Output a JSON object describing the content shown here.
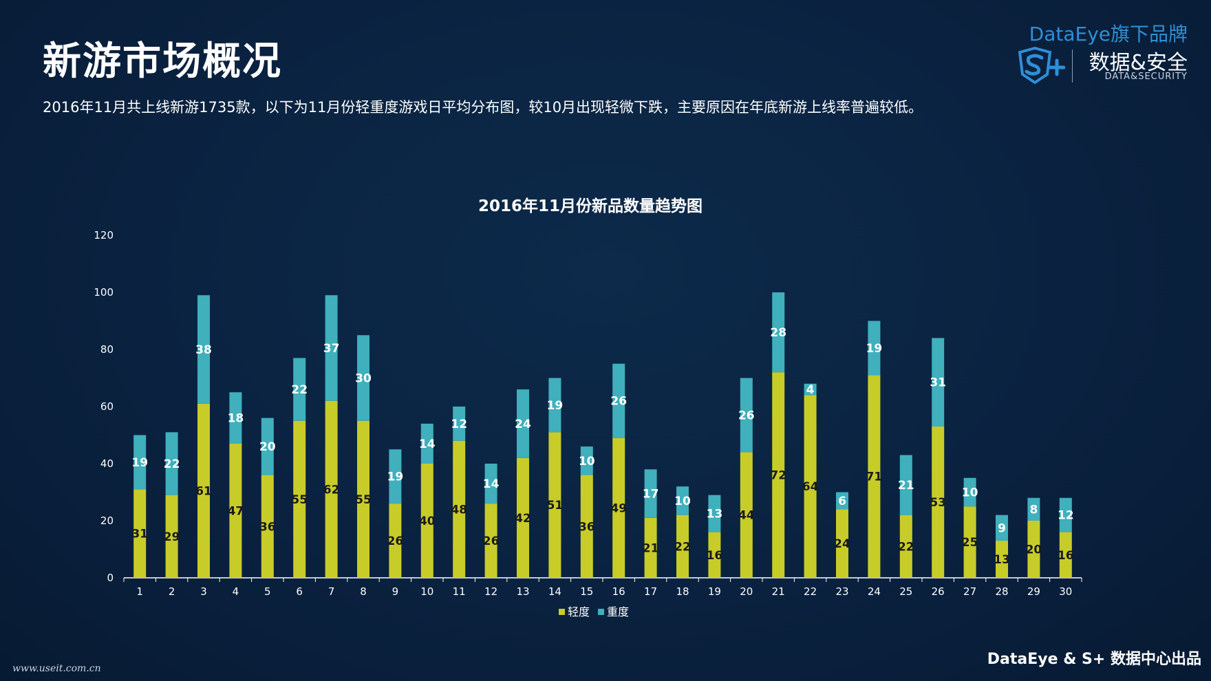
{
  "header": {
    "title": "新游市场概况",
    "subtitle": "2016年11月共上线新游1735款，以下为11月份轻重度游戏日平均分布图，较10月出现轻微下跌，主要原因在年底新游上线率普遍较低。"
  },
  "brand": {
    "tagline": "DataEye旗下品牌",
    "name_cn": "数据&安全",
    "name_en": "DATA&SECURITY",
    "logo_icon": "shield-s-plus-icon"
  },
  "footer": {
    "left": "www.useit.com.cn",
    "right": "DataEye & S+ 数据中心出品"
  },
  "colors": {
    "light": "#c8cc28",
    "heavy": "#3fb0bc",
    "axis": "#ffffff",
    "brand_blue": "#2f8fd6"
  },
  "chart_data": {
    "type": "bar",
    "stacked": true,
    "title": "2016年11月份新品数量趋势图",
    "xlabel": "",
    "ylabel": "",
    "ylim": [
      0,
      120
    ],
    "yticks": [
      0,
      20,
      40,
      60,
      80,
      100,
      120
    ],
    "grid": false,
    "legend_position": "bottom",
    "categories": [
      "1",
      "2",
      "3",
      "4",
      "5",
      "6",
      "7",
      "8",
      "9",
      "10",
      "11",
      "12",
      "13",
      "14",
      "15",
      "16",
      "17",
      "18",
      "19",
      "20",
      "21",
      "22",
      "23",
      "24",
      "25",
      "26",
      "27",
      "28",
      "29",
      "30"
    ],
    "series": [
      {
        "name": "轻度",
        "color": "#c8cc28",
        "values": [
          31,
          29,
          61,
          47,
          36,
          55,
          62,
          55,
          26,
          40,
          48,
          26,
          42,
          51,
          36,
          49,
          21,
          22,
          16,
          44,
          72,
          64,
          24,
          71,
          22,
          53,
          25,
          13,
          20,
          16
        ]
      },
      {
        "name": "重度",
        "color": "#3fb0bc",
        "values": [
          19,
          22,
          38,
          18,
          20,
          22,
          37,
          30,
          19,
          14,
          12,
          14,
          24,
          19,
          10,
          26,
          17,
          10,
          13,
          26,
          28,
          4,
          6,
          19,
          21,
          31,
          10,
          9,
          8,
          12
        ]
      }
    ]
  }
}
